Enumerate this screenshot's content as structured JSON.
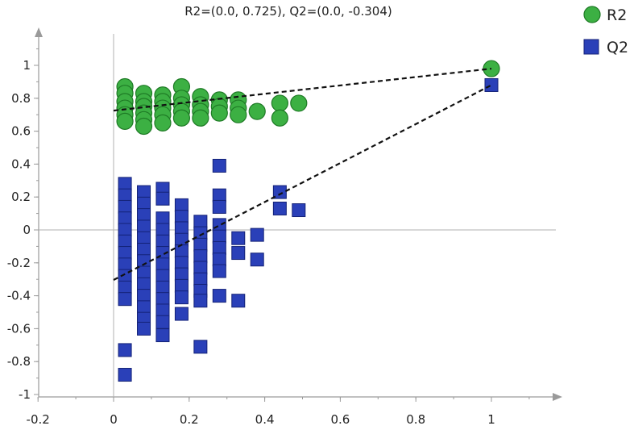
{
  "chart_data": {
    "type": "scatter",
    "title": "R2=(0.0, 0.725), Q2=(0.0, -0.304)",
    "xlim": [
      -0.2,
      1.17
    ],
    "ylim": [
      -1,
      1.15
    ],
    "x_ticks": [
      "-0.2",
      "0",
      "0.2",
      "0.4",
      "0.6",
      "0.8",
      "1"
    ],
    "x_tick_values": [
      -0.2,
      0,
      0.2,
      0.4,
      0.6,
      0.8,
      1
    ],
    "y_ticks": [
      "-1",
      "-0.8",
      "-0.6",
      "-0.4",
      "-0.2",
      "0",
      "0.2",
      "0.4",
      "0.6",
      "0.8",
      "1"
    ],
    "y_tick_values": [
      -1,
      -0.8,
      -0.6,
      -0.4,
      -0.2,
      0,
      0.2,
      0.4,
      0.6,
      0.8,
      1
    ],
    "legend": {
      "position": "top-right"
    },
    "series": [
      {
        "name": "R2",
        "marker": "circle",
        "color": "#3cb043",
        "edge": "#1e7a25",
        "points": [
          [
            1.0,
            0.98
          ],
          [
            0.03,
            0.87
          ],
          [
            0.03,
            0.83
          ],
          [
            0.03,
            0.78
          ],
          [
            0.03,
            0.74
          ],
          [
            0.03,
            0.7
          ],
          [
            0.03,
            0.66
          ],
          [
            0.08,
            0.83
          ],
          [
            0.08,
            0.78
          ],
          [
            0.08,
            0.75
          ],
          [
            0.08,
            0.71
          ],
          [
            0.08,
            0.67
          ],
          [
            0.08,
            0.63
          ],
          [
            0.13,
            0.82
          ],
          [
            0.13,
            0.78
          ],
          [
            0.13,
            0.74
          ],
          [
            0.13,
            0.7
          ],
          [
            0.13,
            0.65
          ],
          [
            0.18,
            0.87
          ],
          [
            0.18,
            0.8
          ],
          [
            0.18,
            0.76
          ],
          [
            0.18,
            0.72
          ],
          [
            0.18,
            0.68
          ],
          [
            0.23,
            0.81
          ],
          [
            0.23,
            0.76
          ],
          [
            0.23,
            0.72
          ],
          [
            0.23,
            0.68
          ],
          [
            0.28,
            0.79
          ],
          [
            0.28,
            0.75
          ],
          [
            0.28,
            0.71
          ],
          [
            0.33,
            0.79
          ],
          [
            0.33,
            0.74
          ],
          [
            0.33,
            0.7
          ],
          [
            0.38,
            0.72
          ],
          [
            0.44,
            0.77
          ],
          [
            0.44,
            0.68
          ],
          [
            0.49,
            0.77
          ]
        ],
        "regression": {
          "x": [
            0.0,
            1.0
          ],
          "y": [
            0.725,
            0.98
          ]
        }
      },
      {
        "name": "Q2",
        "marker": "square",
        "color": "#2a40b8",
        "edge": "#142277",
        "points": [
          [
            1.0,
            0.88
          ],
          [
            0.03,
            0.28
          ],
          [
            0.03,
            0.21
          ],
          [
            0.03,
            0.14
          ],
          [
            0.03,
            0.07
          ],
          [
            0.03,
            0.0
          ],
          [
            0.03,
            -0.07
          ],
          [
            0.03,
            -0.14
          ],
          [
            0.03,
            -0.21
          ],
          [
            0.03,
            -0.28
          ],
          [
            0.03,
            -0.35
          ],
          [
            0.03,
            -0.42
          ],
          [
            0.03,
            -0.73
          ],
          [
            0.03,
            -0.88
          ],
          [
            0.08,
            0.23
          ],
          [
            0.08,
            0.16
          ],
          [
            0.08,
            0.09
          ],
          [
            0.08,
            0.02
          ],
          [
            0.08,
            -0.05
          ],
          [
            0.08,
            -0.12
          ],
          [
            0.08,
            -0.19
          ],
          [
            0.08,
            -0.26
          ],
          [
            0.08,
            -0.33
          ],
          [
            0.08,
            -0.4
          ],
          [
            0.08,
            -0.47
          ],
          [
            0.08,
            -0.54
          ],
          [
            0.08,
            -0.6
          ],
          [
            0.13,
            0.25
          ],
          [
            0.13,
            0.19
          ],
          [
            0.13,
            0.07
          ],
          [
            0.13,
            0.0
          ],
          [
            0.13,
            -0.07
          ],
          [
            0.13,
            -0.14
          ],
          [
            0.13,
            -0.21
          ],
          [
            0.13,
            -0.28
          ],
          [
            0.13,
            -0.35
          ],
          [
            0.13,
            -0.42
          ],
          [
            0.13,
            -0.49
          ],
          [
            0.13,
            -0.56
          ],
          [
            0.13,
            -0.64
          ],
          [
            0.18,
            0.15
          ],
          [
            0.18,
            0.08
          ],
          [
            0.18,
            0.01
          ],
          [
            0.18,
            -0.06
          ],
          [
            0.18,
            -0.13
          ],
          [
            0.18,
            -0.2
          ],
          [
            0.18,
            -0.27
          ],
          [
            0.18,
            -0.34
          ],
          [
            0.18,
            -0.41
          ],
          [
            0.18,
            -0.51
          ],
          [
            0.23,
            0.05
          ],
          [
            0.23,
            -0.02
          ],
          [
            0.23,
            -0.09
          ],
          [
            0.23,
            -0.16
          ],
          [
            0.23,
            -0.23
          ],
          [
            0.23,
            -0.3
          ],
          [
            0.23,
            -0.37
          ],
          [
            0.23,
            -0.43
          ],
          [
            0.23,
            -0.71
          ],
          [
            0.28,
            0.39
          ],
          [
            0.28,
            0.21
          ],
          [
            0.28,
            0.14
          ],
          [
            0.28,
            0.03
          ],
          [
            0.28,
            -0.04
          ],
          [
            0.28,
            -0.11
          ],
          [
            0.28,
            -0.18
          ],
          [
            0.28,
            -0.25
          ],
          [
            0.28,
            -0.4
          ],
          [
            0.33,
            -0.05
          ],
          [
            0.33,
            -0.14
          ],
          [
            0.33,
            -0.43
          ],
          [
            0.38,
            -0.03
          ],
          [
            0.38,
            -0.18
          ],
          [
            0.44,
            0.23
          ],
          [
            0.44,
            0.13
          ],
          [
            0.49,
            0.12
          ]
        ],
        "regression": {
          "x": [
            0.0,
            1.0
          ],
          "y": [
            -0.304,
            0.88
          ]
        }
      }
    ]
  }
}
